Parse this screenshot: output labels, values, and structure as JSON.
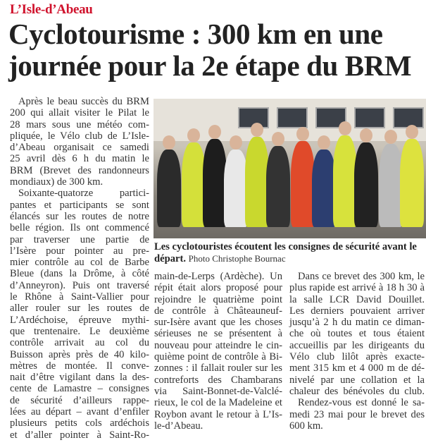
{
  "article": {
    "kicker": "L’Isle-d’Abeau",
    "title": "Cyclotourisme : 300 km en une journée pour la 2e étape du BRM",
    "colors": {
      "kicker": "#d0122c",
      "title": "#222222"
    },
    "photo": {
      "caption": "Les cyclotouristes écoutent les consignes de sécurité avant le départ.",
      "credit": "Photo Christophe Bournac"
    },
    "columns": [
      [
        {
          "t": "Après le beau succès du BRM",
          "i": true
        },
        {
          "t": "200 qui allait visiter le Pilat le"
        },
        {
          "t": "28 mars sous une météo com-"
        },
        {
          "t": "pliquée, le Vélo club de L’Isle-"
        },
        {
          "t": "d’Abeau organisait ce samedi"
        },
        {
          "t": "25 avril dès 6 h du matin le"
        },
        {
          "t": "BRM (Brevet des randonneurs"
        },
        {
          "t": "mondiaux) de 300 km.",
          "l": true
        },
        {
          "t": "Soixante-quatorze partici-",
          "i": true
        },
        {
          "t": "pantes et participants se sont"
        },
        {
          "t": "élancés sur les routes de notre"
        },
        {
          "t": "belle région. Ils ont commencé"
        },
        {
          "t": "par traverser une partie de"
        },
        {
          "t": "l’Isère pour pointer au pre-"
        },
        {
          "t": "mier contrôle au col de Barbe"
        },
        {
          "t": "Bleue (dans la Drôme, à côté"
        },
        {
          "t": "d’Anneyron). Puis ont traversé"
        },
        {
          "t": "le Rhône à Saint-Vallier pour"
        },
        {
          "t": "aller rouler sur les routes de"
        },
        {
          "t": "L’Ardéchoise, épreuve mythi-"
        },
        {
          "t": "que trentenaire. Le deuxième"
        },
        {
          "t": "contrôle arrivait au col du"
        },
        {
          "t": "Buisson après près de 40 kilo-"
        },
        {
          "t": "mètres de montée. Il conve-"
        },
        {
          "t": "nait d’être vigilant dans la des-"
        },
        {
          "t": "cente de Lamastre – consignes"
        },
        {
          "t": "de sécurité d’ailleurs rappe-"
        },
        {
          "t": "lées au départ – avant d’enfiler"
        },
        {
          "t": "plusieurs petits cols ardéchois"
        },
        {
          "t": "et d’aller pointer à Saint-Ro-"
        }
      ],
      [
        {
          "t": "main-de-Lerps (Ardèche). Un"
        },
        {
          "t": "répit était alors proposé pour"
        },
        {
          "t": "rejoindre le quatrième point"
        },
        {
          "t": "de contrôle à Châteauneuf-"
        },
        {
          "t": "sur-Isère avant que les choses"
        },
        {
          "t": "sérieuses ne se présentent à"
        },
        {
          "t": "nouveau pour atteindre le cin-"
        },
        {
          "t": "quième point de contrôle à Bi-"
        },
        {
          "t": "zonnes : il fallait rouler sur les"
        },
        {
          "t": "contreforts des Chambarans"
        },
        {
          "t": "via Saint-Bonnet-de-Valclé-"
        },
        {
          "t": "rieux, le col de la Madeleine et"
        },
        {
          "t": "Roybon avant le retour à L’Is-"
        },
        {
          "t": "le-d’Abeau.",
          "l": true
        }
      ],
      [
        {
          "t": "Dans ce brevet des 300 km, le",
          "i": true
        },
        {
          "t": "plus rapide est arrivé à 18 h 30 à"
        },
        {
          "t": "la salle LCR David Douillet."
        },
        {
          "t": "Les derniers pouvaient arriver"
        },
        {
          "t": "jusqu’à 2 h du matin ce diman-"
        },
        {
          "t": "che où toutes et tous étaient"
        },
        {
          "t": "accueillis par les dirigeants du"
        },
        {
          "t": "Vélo club lilôt après exacte-"
        },
        {
          "t": "ment 315 km et 4 000 m de dé-"
        },
        {
          "t": "nivelé par une collation et la"
        },
        {
          "t": "chaleur des bénévoles du club."
        },
        {
          "t": "Rendez-vous est donné le sa-",
          "i": true
        },
        {
          "t": "medi 23 mai pour le brevet des"
        },
        {
          "t": "600 km.",
          "l": true
        }
      ]
    ]
  }
}
